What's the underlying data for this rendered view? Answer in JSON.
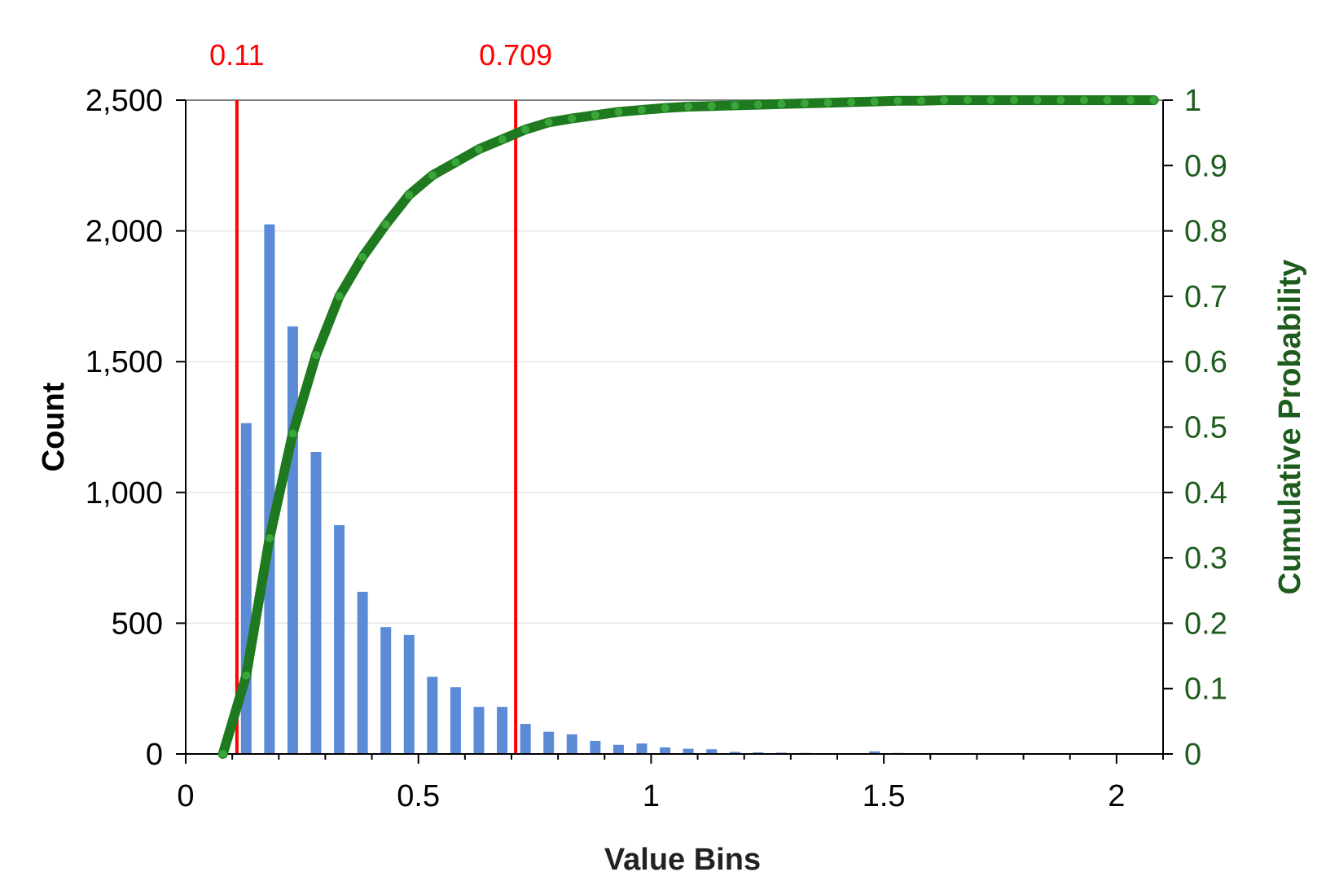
{
  "chart_data": {
    "type": "bar",
    "xlabel": "Value Bins",
    "ylabel": "Count",
    "y2label": "Cumulative Probability",
    "xlim": [
      0,
      2.1
    ],
    "ylim": [
      0,
      2500
    ],
    "y2lim": [
      0,
      1
    ],
    "x_ticks": [
      "0",
      "0.5",
      "1",
      "1.5",
      "2"
    ],
    "y_ticks": [
      "0",
      "500",
      "1,000",
      "1,500",
      "2,000",
      "2,500"
    ],
    "y2_ticks": [
      "0",
      "0.1",
      "0.2",
      "0.3",
      "0.4",
      "0.5",
      "0.6",
      "0.7",
      "0.8",
      "0.9",
      "1"
    ],
    "grid": true,
    "series": [
      {
        "type": "bar",
        "x": [
          0.13,
          0.18,
          0.23,
          0.28,
          0.33,
          0.38,
          0.43,
          0.48,
          0.53,
          0.58,
          0.63,
          0.68,
          0.73,
          0.78,
          0.83,
          0.88,
          0.93,
          0.98,
          1.03,
          1.08,
          1.13,
          1.18,
          1.23,
          1.28,
          1.33,
          1.38,
          1.43,
          1.48,
          1.53,
          1.58
        ],
        "values": [
          1265,
          2025,
          1635,
          1155,
          875,
          620,
          485,
          455,
          295,
          255,
          180,
          180,
          115,
          85,
          75,
          50,
          35,
          40,
          25,
          20,
          18,
          8,
          6,
          5,
          4,
          3,
          3,
          10,
          4,
          2
        ],
        "color": "#5b8bd6"
      },
      {
        "type": "line",
        "axis": "y2",
        "x": [
          0.08,
          0.13,
          0.18,
          0.23,
          0.28,
          0.33,
          0.38,
          0.43,
          0.48,
          0.53,
          0.58,
          0.63,
          0.68,
          0.73,
          0.78,
          0.83,
          0.88,
          0.93,
          0.98,
          1.03,
          1.08,
          1.13,
          1.18,
          1.23,
          1.28,
          1.33,
          1.38,
          1.43,
          1.48,
          1.53,
          1.58,
          1.63,
          1.68,
          1.73,
          1.78,
          1.83,
          1.88,
          1.93,
          1.98,
          2.03,
          2.08
        ],
        "values": [
          0.0,
          0.12,
          0.33,
          0.49,
          0.61,
          0.7,
          0.76,
          0.81,
          0.855,
          0.885,
          0.905,
          0.925,
          0.94,
          0.955,
          0.966,
          0.972,
          0.977,
          0.982,
          0.985,
          0.988,
          0.99,
          0.991,
          0.992,
          0.993,
          0.994,
          0.995,
          0.996,
          0.997,
          0.998,
          0.999,
          0.999,
          1.0,
          1.0,
          1.0,
          1.0,
          1.0,
          1.0,
          1.0,
          1.0,
          1.0,
          1.0
        ],
        "color": "#1f7a1f",
        "marker_color": "#3aa63a"
      }
    ],
    "markers": [
      {
        "x": 0.11,
        "label": "0.11",
        "color": "#ff0000"
      },
      {
        "x": 0.709,
        "label": "0.709",
        "color": "#ff0000"
      }
    ],
    "colors": {
      "axis": "#000000",
      "y2_axis": "#1e5c1e",
      "grid": "#e6e6e6"
    }
  }
}
